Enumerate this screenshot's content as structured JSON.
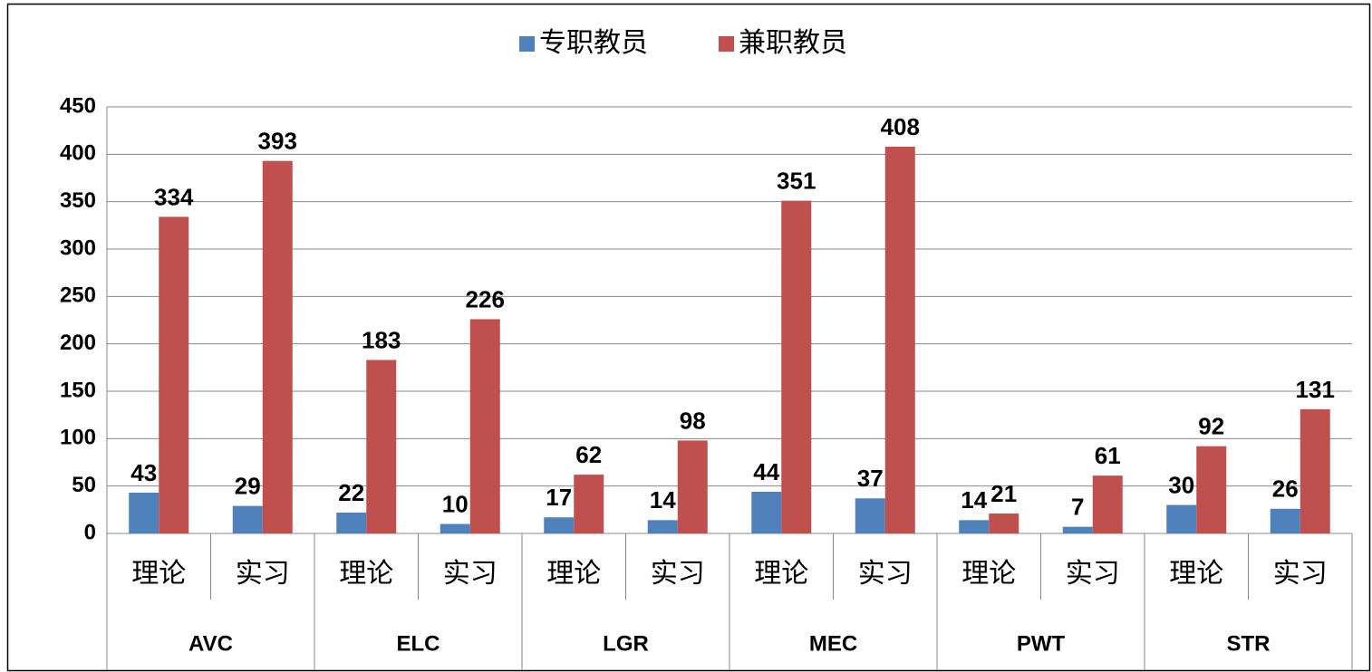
{
  "chart_data": {
    "type": "bar",
    "categories": [
      "理论",
      "实习",
      "理论",
      "实习",
      "理论",
      "实习",
      "理论",
      "实习",
      "理论",
      "实习",
      "理论",
      "实习"
    ],
    "category_groups": [
      "AVC",
      "ELC",
      "LGR",
      "MEC",
      "PWT",
      "STR"
    ],
    "series": [
      {
        "name": "专职教员",
        "color": "#4f81bd",
        "values": [
          43,
          29,
          22,
          10,
          17,
          14,
          44,
          37,
          14,
          7,
          30,
          26
        ]
      },
      {
        "name": "兼职教员",
        "color": "#c0504d",
        "values": [
          334,
          393,
          183,
          226,
          62,
          98,
          351,
          408,
          21,
          61,
          92,
          131
        ]
      }
    ],
    "ylim": [
      0,
      450
    ],
    "yticks": [
      0,
      50,
      100,
      150,
      200,
      250,
      300,
      350,
      400,
      450
    ],
    "grid": true,
    "legend": "top"
  }
}
